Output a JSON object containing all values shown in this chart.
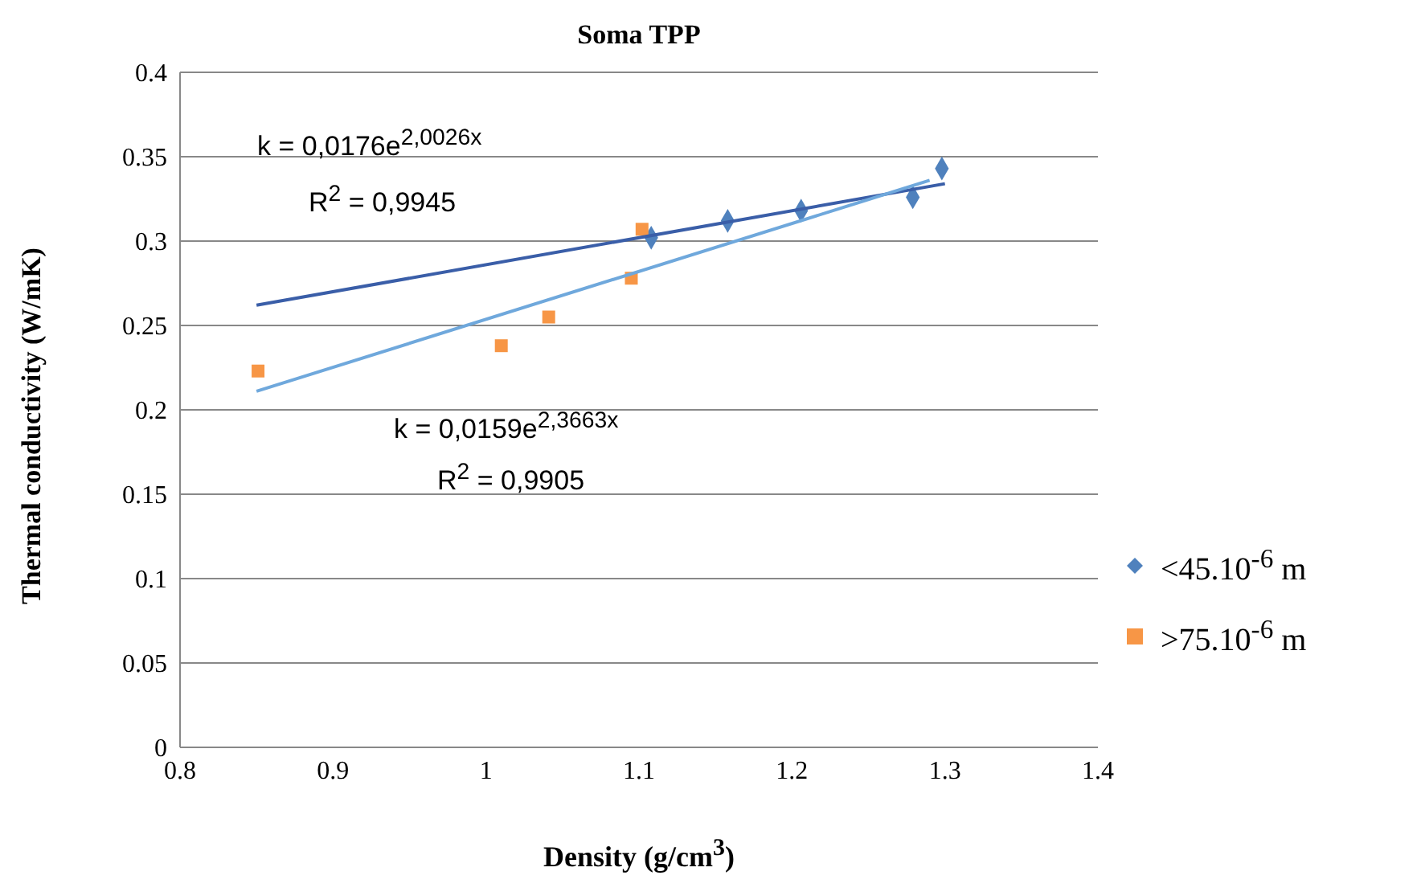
{
  "chart_data": {
    "type": "scatter",
    "title": "Soma TPP",
    "xlabel": "Density (g/cm$^{3}$)",
    "ylabel": "Thermal conductivity (W/mK)",
    "xlim": [
      0.8,
      1.4
    ],
    "xticks": [
      0.8,
      0.9,
      1,
      1.1,
      1.2,
      1.3,
      1.4
    ],
    "ylim": [
      0,
      0.4
    ],
    "yticks": [
      0,
      0.05,
      0.1,
      0.15,
      0.2,
      0.25,
      0.3,
      0.35,
      0.4
    ],
    "grid": "y",
    "legend": "right",
    "series": [
      {
        "name": "<45.10$^{-6}$ m",
        "type": "scatter",
        "marker": "diamond",
        "color": "#4f81bd",
        "x": [
          1.108,
          1.158,
          1.206,
          1.279,
          1.298
        ],
        "values": [
          0.302,
          0.312,
          0.318,
          0.326,
          0.343
        ]
      },
      {
        "name": ">75.10$^{-6}$ m",
        "type": "scatter",
        "marker": "square",
        "color": "#f79646",
        "x": [
          0.851,
          1.01,
          1.041,
          1.095,
          1.102
        ],
        "values": [
          0.223,
          0.238,
          0.255,
          0.278,
          0.307
        ]
      },
      {
        "type": "line",
        "marker": "none",
        "color": "#3a5ea8",
        "x": [
          0.85,
          1.3
        ],
        "values": [
          0.262,
          0.334
        ]
      },
      {
        "type": "line",
        "marker": "none",
        "color": "#6fa8dc",
        "x": [
          0.85,
          1.29
        ],
        "values": [
          0.211,
          0.336
        ]
      }
    ],
    "annotations": [
      "k = 0,0176e$^{2,0026x}$",
      "R$^{2}$ = 0,9945",
      "k = 0,0159e$^{2,3663x}$",
      "R$^{2}$ = 0,9905"
    ]
  }
}
